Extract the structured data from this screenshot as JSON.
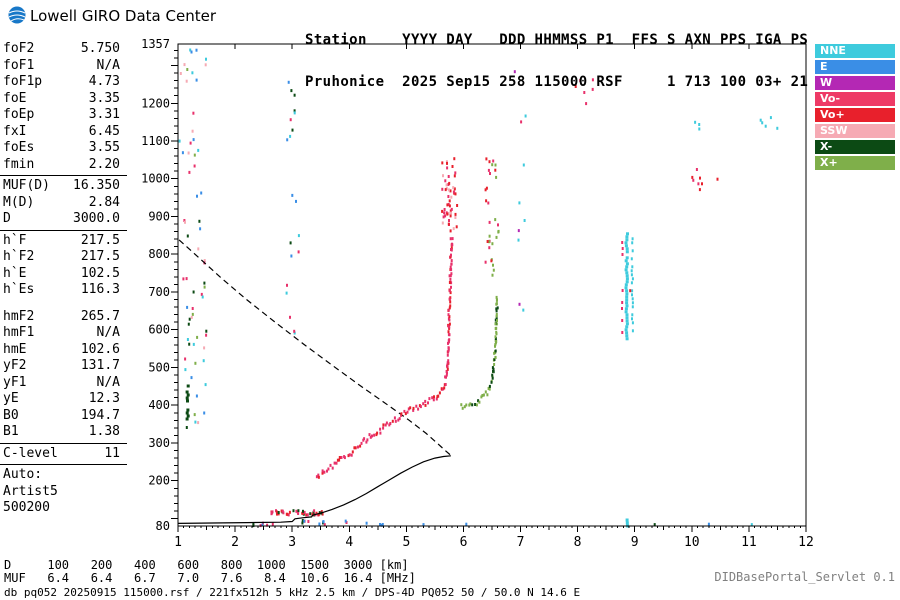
{
  "header": {
    "title": "Lowell GIRO Data Center",
    "station_line1": "Station    YYYY DAY   DDD HHMMSS P1  FFS S AXN PPS IGA PS",
    "station_line2": "Pruhonice  2025 Sep15 258 115000 RSF     1 713 100 03+ 21"
  },
  "params": {
    "groups": [
      {
        "rows": [
          [
            "foF2",
            "5.750"
          ],
          [
            "foF1",
            "N/A"
          ],
          [
            "foF1p",
            "4.73"
          ],
          [
            "foE",
            "3.35"
          ],
          [
            "foEp",
            "3.31"
          ],
          [
            "fxI",
            "6.45"
          ],
          [
            "foEs",
            "3.55"
          ],
          [
            "fmin",
            "2.20"
          ]
        ],
        "divider_after": true
      },
      {
        "rows": [
          [
            "MUF(D)",
            "16.350"
          ],
          [
            "M(D)",
            "2.84"
          ],
          [
            "D",
            "3000.0"
          ]
        ],
        "divider_after": true
      },
      {
        "rows": [
          [
            "h`F",
            "217.5"
          ],
          [
            "h`F2",
            "217.5"
          ],
          [
            "h`E",
            "102.5"
          ],
          [
            "h`Es",
            "116.3"
          ]
        ],
        "gap_after": true
      },
      {
        "rows": [
          [
            "hmF2",
            "265.7"
          ],
          [
            "hmF1",
            "N/A"
          ],
          [
            "hmE",
            "102.6"
          ],
          [
            "yF2",
            "131.7"
          ],
          [
            "yF1",
            "N/A"
          ],
          [
            "yE",
            "12.3"
          ],
          [
            "B0",
            "194.7"
          ],
          [
            "B1",
            "1.38"
          ]
        ],
        "divider_after": true
      },
      {
        "rows": [
          [
            "C-level",
            "11"
          ]
        ],
        "divider_after": true
      },
      {
        "rows": [
          [
            "Auto:",
            ""
          ],
          [
            "Artist5",
            ""
          ],
          [
            "500200",
            ""
          ]
        ]
      }
    ]
  },
  "legend": {
    "items": [
      {
        "label": "NNE",
        "color": "#3ECBDD"
      },
      {
        "label": "E",
        "color": "#3A8EE6"
      },
      {
        "label": "W",
        "color": "#B428B4"
      },
      {
        "label": "Vo-",
        "color": "#EE3A66"
      },
      {
        "label": "Vo+",
        "color": "#E8202C"
      },
      {
        "label": "SSW",
        "color": "#F6AAB4"
      },
      {
        "label": "X-",
        "color": "#0C4A14"
      },
      {
        "label": "X+",
        "color": "#7FAF4A"
      }
    ]
  },
  "footer": {
    "d_row": "D     100   200   400   600   800  1000  1500  3000 [km]",
    "muf_row": "MUF   6.4   6.4   6.7   7.0   7.6   8.4  10.6  16.4 [MHz]",
    "info_row": "db pq052 20250915 115000.rsf / 221fx512h 5 kHz 2.5 km / DPS-4D PQ052 50 / 50.0 N 14.6 E",
    "servlet": "DIDBasePortal_Servlet 0.1"
  },
  "chart_data": {
    "type": "scatter",
    "title": "Pruhonice ionogram 2025 Sep15 115000",
    "x_axis": {
      "unit": "MHz",
      "min": 1,
      "max": 12,
      "labels": [
        1,
        2,
        3,
        4,
        5,
        6,
        7,
        8,
        9,
        10,
        11,
        12
      ]
    },
    "y_axis": {
      "unit": "km",
      "min": 80,
      "max": 1357,
      "labels": [
        1357,
        1200,
        1100,
        1000,
        900,
        800,
        700,
        600,
        500,
        400,
        300,
        200,
        80
      ]
    },
    "colors": {
      "nne": "#3ECBDD",
      "e": "#3A8EE6",
      "w": "#B428B4",
      "vo-": "#E8316B",
      "vo+": "#E8202C",
      "ssw": "#F6AAB4",
      "x-": "#0C4A14",
      "x+": "#7FAF4A"
    },
    "traces": [
      {
        "name": "o-mode-trace",
        "colors": [
          "vo-",
          "vo+",
          "vo-"
        ],
        "spread": 3,
        "step": 2,
        "size": [
          2,
          3
        ],
        "pts": [
          [
            3.42,
            210
          ],
          [
            3.55,
            222
          ],
          [
            3.7,
            237
          ],
          [
            3.85,
            254
          ],
          [
            4.0,
            272
          ],
          [
            4.15,
            290
          ],
          [
            4.3,
            308
          ],
          [
            4.5,
            330
          ],
          [
            4.7,
            351
          ],
          [
            4.9,
            371
          ],
          [
            5.05,
            385
          ],
          [
            5.2,
            396
          ],
          [
            5.35,
            406
          ],
          [
            5.5,
            418
          ],
          [
            5.6,
            432
          ],
          [
            5.66,
            450
          ],
          [
            5.7,
            478
          ],
          [
            5.72,
            510
          ],
          [
            5.735,
            555
          ],
          [
            5.745,
            605
          ],
          [
            5.755,
            655
          ],
          [
            5.765,
            705
          ],
          [
            5.775,
            755
          ],
          [
            5.785,
            805
          ],
          [
            5.795,
            850
          ]
        ]
      },
      {
        "name": "x-mode-trace",
        "colors": [
          "x+",
          "x+",
          "x-"
        ],
        "spread": 2.5,
        "step": 2,
        "size": [
          2,
          3
        ],
        "pts": [
          [
            5.95,
            396
          ],
          [
            6.1,
            400
          ],
          [
            6.22,
            407
          ],
          [
            6.32,
            417
          ],
          [
            6.4,
            430
          ],
          [
            6.46,
            447
          ],
          [
            6.5,
            470
          ],
          [
            6.53,
            500
          ],
          [
            6.55,
            535
          ],
          [
            6.565,
            575
          ],
          [
            6.575,
            615
          ],
          [
            6.585,
            655
          ],
          [
            6.59,
            690
          ]
        ]
      }
    ],
    "columns": [
      {
        "f": 8.86,
        "w": 3,
        "h1": 575,
        "h2": 858,
        "step": 3,
        "density": 0.97,
        "color": "nne"
      },
      {
        "f": 8.96,
        "w": 2,
        "h1": 600,
        "h2": 845,
        "step": 4,
        "density": 0.75,
        "color": "nne"
      },
      {
        "f": 8.79,
        "w": 2,
        "h1": 595,
        "h2": 835,
        "step": 6,
        "density": 0.45,
        "color": "vo-"
      },
      {
        "f": 8.91,
        "w": 2,
        "h1": 610,
        "h2": 800,
        "step": 7,
        "density": 0.35,
        "color": "vo+"
      },
      {
        "f": 8.87,
        "w": 3,
        "h1": 80,
        "h2": 100,
        "step": 3,
        "density": 1,
        "color": "nne"
      },
      {
        "f": 1.17,
        "w": 3,
        "h1": 360,
        "h2": 455,
        "step": 3,
        "density": 0.85,
        "color": "x-"
      },
      {
        "f": 1.14,
        "w": 2,
        "h1": 470,
        "h2": 530,
        "step": 4,
        "density": 0.5,
        "color": "nne"
      },
      {
        "f": 1.2,
        "w": 2,
        "h1": 555,
        "h2": 645,
        "step": 5,
        "density": 0.45,
        "color": "x-"
      },
      {
        "f": 5.74,
        "w": 2,
        "h1": 858,
        "h2": 1010,
        "step": 4,
        "density": 0.55,
        "color": "vo-"
      },
      {
        "f": 5.77,
        "w": 2,
        "h1": 865,
        "h2": 985,
        "step": 5,
        "density": 0.45,
        "color": "vo+"
      },
      {
        "f": 6.52,
        "w": 2,
        "h1": 700,
        "h2": 775,
        "step": 5,
        "density": 0.5,
        "color": "x+"
      }
    ],
    "scatters": [
      {
        "f1": 5.62,
        "f2": 5.9,
        "h1": 860,
        "h2": 1060,
        "n": 40,
        "colors": [
          "vo-",
          "vo+",
          "ssw"
        ]
      },
      {
        "f1": 6.38,
        "f2": 6.62,
        "h1": 780,
        "h2": 1060,
        "n": 28,
        "colors": [
          "x+",
          "vo-",
          "vo+"
        ]
      },
      {
        "f1": 1.02,
        "f2": 1.5,
        "h1": 330,
        "h2": 1345,
        "n": 60,
        "colors": [
          "vo-",
          "x-",
          "nne",
          "e",
          "ssw",
          "x+"
        ]
      },
      {
        "f1": 2.9,
        "f2": 3.12,
        "h1": 580,
        "h2": 1300,
        "n": 20,
        "colors": [
          "vo-",
          "e",
          "x-",
          "nne"
        ]
      },
      {
        "f1": 6.85,
        "f2": 7.15,
        "h1": 620,
        "h2": 1310,
        "n": 9,
        "colors": [
          "vo-",
          "w",
          "nne"
        ]
      },
      {
        "f1": 7.9,
        "f2": 8.35,
        "h1": 1190,
        "h2": 1300,
        "n": 6,
        "colors": [
          "vo+",
          "vo-"
        ]
      },
      {
        "f1": 9.95,
        "f2": 10.2,
        "h1": 960,
        "h2": 1030,
        "n": 7,
        "colors": [
          "vo+",
          "vo-"
        ]
      },
      {
        "f1": 11.15,
        "f2": 11.6,
        "h1": 1120,
        "h2": 1165,
        "n": 5,
        "colors": [
          "nne"
        ]
      },
      {
        "f1": 10.05,
        "f2": 10.25,
        "h1": 1125,
        "h2": 1160,
        "n": 3,
        "colors": [
          "nne"
        ]
      },
      {
        "f1": 2.2,
        "f2": 4.0,
        "h1": 82,
        "h2": 96,
        "n": 18,
        "colors": [
          "x-",
          "vo-",
          "e"
        ]
      },
      {
        "f1": 4.3,
        "f2": 4.6,
        "h1": 82,
        "h2": 92,
        "n": 4,
        "colors": [
          "x-",
          "e"
        ]
      },
      {
        "f1": 2.6,
        "f2": 3.55,
        "h1": 108,
        "h2": 122,
        "n": 46,
        "colors": [
          "vo-",
          "x-",
          "vo+"
        ]
      }
    ],
    "specks": [
      [
        6.05,
        86,
        "e"
      ],
      [
        9.35,
        85,
        "x-"
      ],
      [
        10.3,
        86,
        "e"
      ],
      [
        11.05,
        85,
        "nne"
      ],
      [
        6.9,
        1285,
        "w"
      ],
      [
        10.45,
        1000,
        "vo+"
      ],
      [
        2.32,
        88,
        "x-"
      ],
      [
        5.3,
        85,
        "e"
      ]
    ],
    "profile_line": [
      [
        1.0,
        87
      ],
      [
        1.6,
        88
      ],
      [
        2.2,
        89
      ],
      [
        2.8,
        90
      ],
      [
        3.0,
        92
      ],
      [
        3.05,
        99
      ],
      [
        3.2,
        102
      ],
      [
        3.34,
        104
      ],
      [
        3.36,
        109
      ],
      [
        3.5,
        114
      ],
      [
        3.7,
        124
      ],
      [
        3.9,
        136
      ],
      [
        4.1,
        150
      ],
      [
        4.3,
        166
      ],
      [
        4.5,
        184
      ],
      [
        4.7,
        202
      ],
      [
        4.9,
        220
      ],
      [
        5.1,
        236
      ],
      [
        5.3,
        250
      ],
      [
        5.5,
        260
      ],
      [
        5.65,
        264
      ],
      [
        5.78,
        266
      ]
    ],
    "topside_line": [
      [
        1.02,
        838
      ],
      [
        1.35,
        793
      ],
      [
        1.75,
        738
      ],
      [
        2.2,
        680
      ],
      [
        2.7,
        620
      ],
      [
        3.2,
        562
      ],
      [
        3.7,
        506
      ],
      [
        4.2,
        451
      ],
      [
        4.7,
        398
      ],
      [
        5.05,
        360
      ],
      [
        5.35,
        325
      ],
      [
        5.55,
        298
      ],
      [
        5.68,
        280
      ],
      [
        5.78,
        267
      ]
    ]
  }
}
